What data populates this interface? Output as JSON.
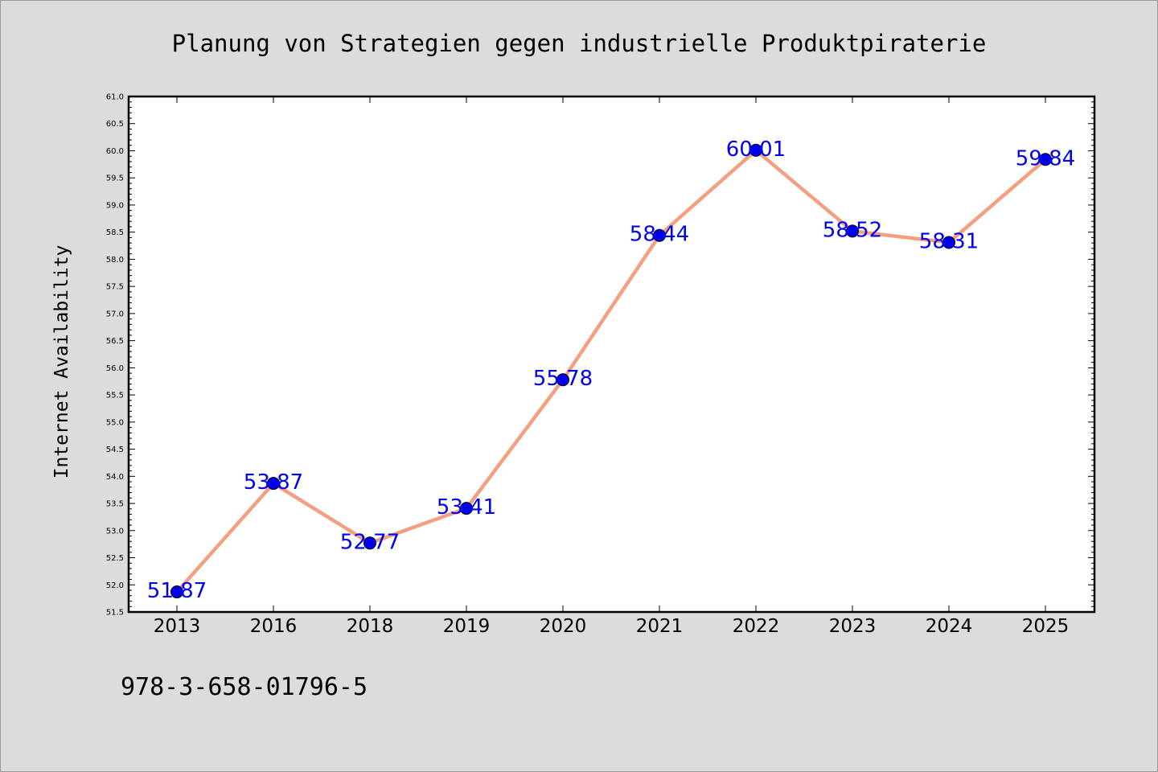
{
  "chart_data": {
    "type": "line",
    "title": "Planung von Strategien gegen industrielle Produktpiraterie",
    "xlabel": "",
    "ylabel": "Internet Availability",
    "categories": [
      "2013",
      "2016",
      "2018",
      "2019",
      "2020",
      "2021",
      "2022",
      "2023",
      "2024",
      "2025"
    ],
    "series": [
      {
        "values": [
          51.87,
          53.87,
          52.77,
          53.41,
          55.78,
          58.44,
          60.01,
          58.52,
          58.31,
          59.84
        ]
      }
    ],
    "data_labels": [
      "51.87",
      "53.87",
      "52.77",
      "53.41",
      "55.78",
      "58.44",
      "60.01",
      "58.52",
      "58.31",
      "59.84"
    ],
    "ylim": [
      51.5,
      61.0
    ],
    "yticks": [
      "51.5",
      "52.0",
      "52.5",
      "53.0",
      "53.5",
      "54.0",
      "54.5",
      "55.0",
      "55.5",
      "56.0",
      "56.5",
      "57.0",
      "57.5",
      "58.0",
      "58.5",
      "59.0",
      "59.5",
      "60.0",
      "60.5",
      "61.0"
    ],
    "grid": false,
    "legend": "none",
    "colors": {
      "line": "#f4a080",
      "marker": "#0000ee",
      "label": "#0000ee",
      "background": "#dcdcdc",
      "plot_background": "#ffffff"
    }
  },
  "footer_text": "978-3-658-01796-5"
}
